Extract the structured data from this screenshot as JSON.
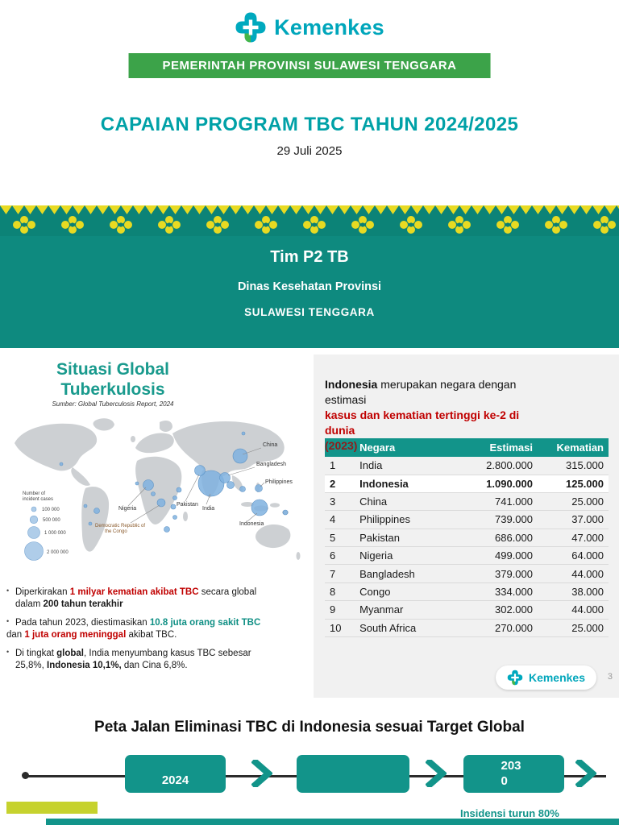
{
  "header": {
    "logo_text": "Kemenkes",
    "banner": "PEMERINTAH PROVINSI SULAWESI TENGGARA",
    "title": "CAPAIAN PROGRAM TBC TAHUN 2024/2025",
    "date": "29 Juli 2025"
  },
  "team_banner": {
    "line1": "Tim P2 TB",
    "line2": "Dinas Kesehatan Provinsi",
    "line3": "SULAWESI TENGGARA"
  },
  "global": {
    "title_line1": "Situasi Global",
    "title_line2": "Tuberkulosis",
    "source": "Sumber: Global Tuberculosis Report, 2024",
    "map": {
      "legend_title_line1": "Number of",
      "legend_title_line2": "incident cases",
      "legend_values": [
        "100 000",
        "500 000",
        "1 000 000",
        "2 000 000"
      ],
      "labels": {
        "china": "China",
        "bangladesh": "Bangladesh",
        "philippines": "Philippines",
        "pakistan": "Pakistan",
        "india": "India",
        "indonesia": "Indonesia",
        "nigeria": "Nigeria",
        "drc_line1": "Democratic Republic of",
        "drc_line2": "the Congo"
      }
    },
    "bullets": {
      "b1": {
        "s1": "Diperkirakan ",
        "s2": "1 milyar kematian akibat TBC",
        "s3": " secara global dalam ",
        "s4": "200 tahun terakhir"
      },
      "b2": {
        "s1": "Pada tahun 2023, diestimasikan ",
        "s2": "10.8 juta orang sakit TBC",
        "s3": "dan ",
        "s4": "1 juta orang meninggal",
        "s5": " akibat TBC."
      },
      "b3": {
        "s1": "Di tingkat ",
        "s2": "global",
        "s3": ", India menyumbang kasus TBC sebesar 25,8%, ",
        "s4": "Indonesia 10,1%,",
        "s5": " dan Cina 6,8%."
      }
    }
  },
  "right_panel": {
    "intro": {
      "s1": "Indonesia",
      "s2": " merupakan negara dengan estimasi ",
      "s3": "kasus dan kematian tertinggi ke-2 di dunia",
      "s4": "(2023)"
    },
    "table": {
      "headers": {
        "no": "",
        "negara": "Negara",
        "estimasi": "Estimasi",
        "kematian": "Kematian"
      },
      "rows": [
        [
          "1",
          "India",
          "2.800.000",
          "315.000"
        ],
        [
          "2",
          "Indonesia",
          "1.090.000",
          "125.000"
        ],
        [
          "3",
          "China",
          "741.000",
          "25.000"
        ],
        [
          "4",
          "Philippines",
          "739.000",
          "37.000"
        ],
        [
          "5",
          "Pakistan",
          "686.000",
          "47.000"
        ],
        [
          "6",
          "Nigeria",
          "499.000",
          "64.000"
        ],
        [
          "7",
          "Bangladesh",
          "379.000",
          "44.000"
        ],
        [
          "8",
          "Congo",
          "334.000",
          "38.000"
        ],
        [
          "9",
          "Myanmar",
          "302.000",
          "44.000"
        ],
        [
          "10",
          "South Africa",
          "270.000",
          "25.000"
        ]
      ],
      "highlight_row_index": 1
    },
    "logo_text": "Kemenkes",
    "page_number": "3"
  },
  "roadmap": {
    "title": "Peta Jalan Eliminasi TBC di Indonesia sesuai Target Global",
    "milestone_1": "2024",
    "milestone_2": "",
    "milestone_3": "2030",
    "note": "Insidensi turun 80%"
  },
  "colors": {
    "teal_banner": "#0E8A7F",
    "teal_accent": "#12948A",
    "green_banner": "#3CA349",
    "red_text": "#C00000",
    "lime_bar": "#C6D22E",
    "brand_cyan": "#00A6BB"
  }
}
